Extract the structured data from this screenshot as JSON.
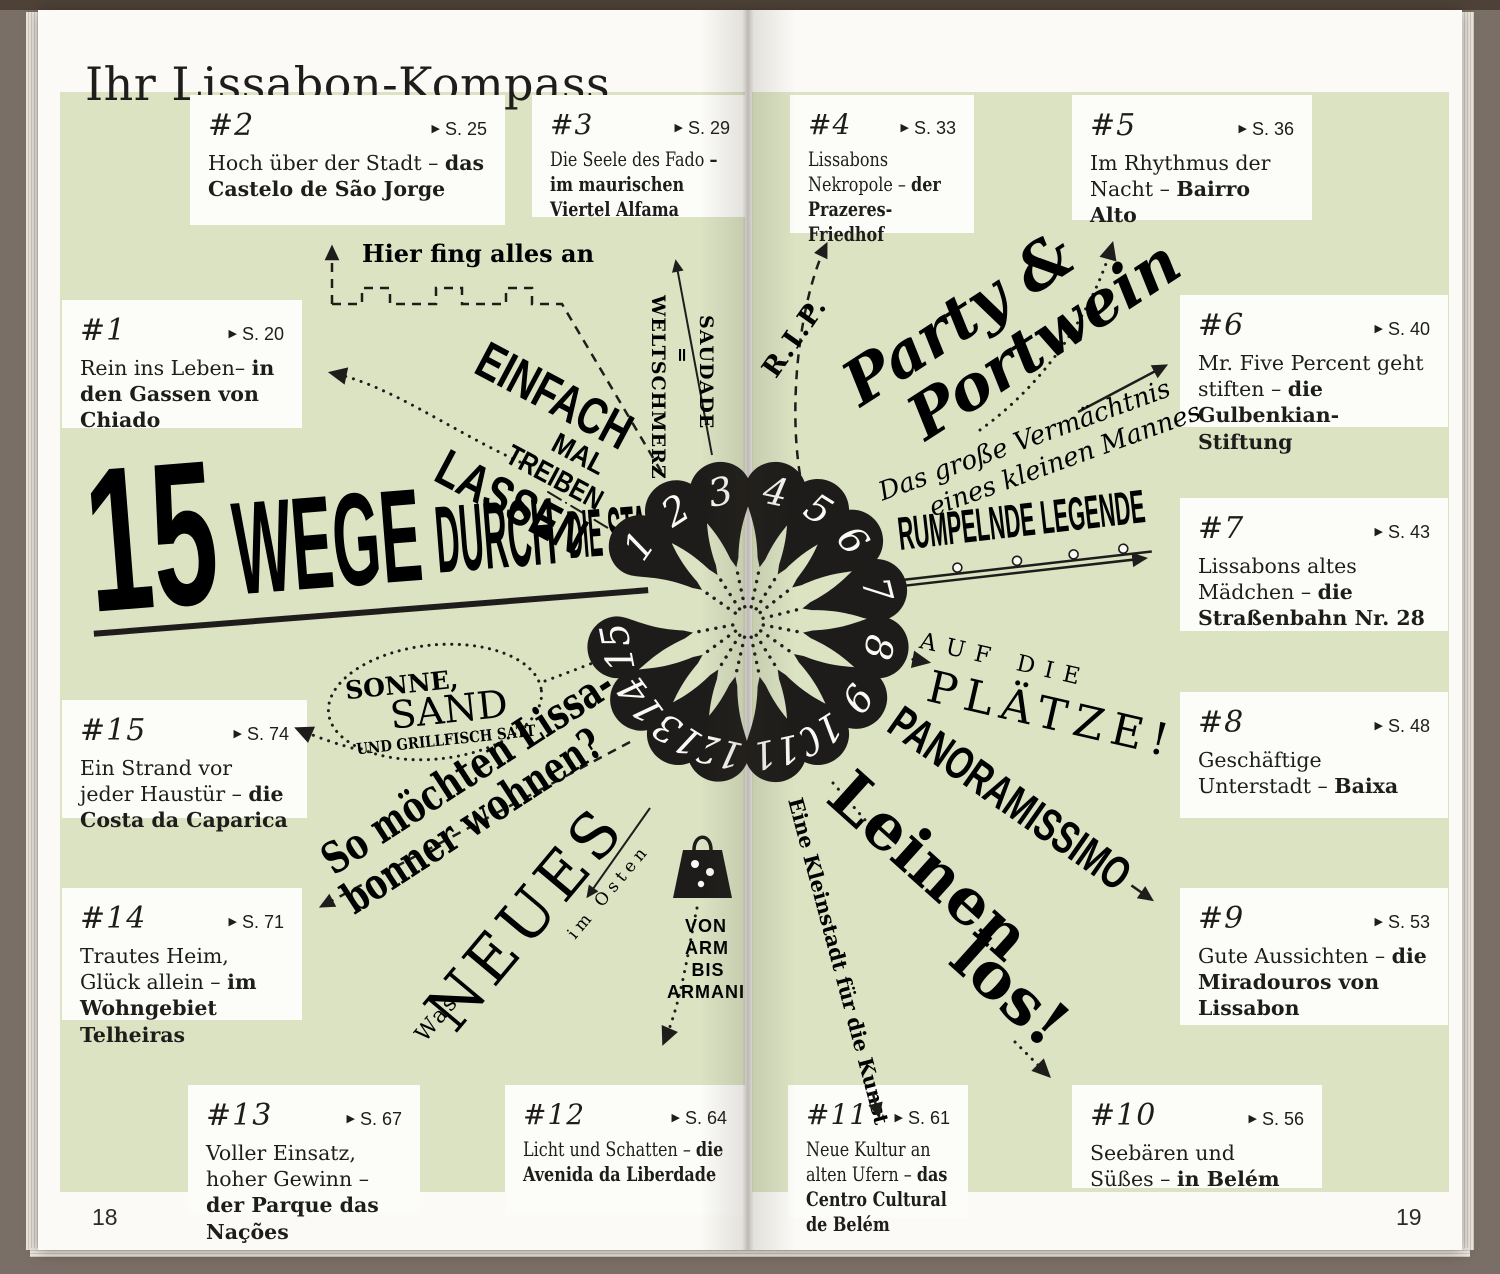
{
  "book": {
    "title": "Ihr Lissabon-Kompass",
    "page_number_left": "18",
    "page_number_right": "19"
  },
  "icons": {
    "page_arrow": "▶"
  },
  "colors": {
    "panel_green": "#dbe3c3",
    "ink": "#1e1d1b",
    "paper": "#fbfaf6",
    "cover": "#7a6f66"
  },
  "headline": {
    "number": "15",
    "word1": "WEGE",
    "word2": "DURCH",
    "word3": "DIE STADT"
  },
  "compass_labels": {
    "hier_fing_alles_an": "Hier fing alles an",
    "einfach_l1": "EINFACH",
    "einfach_l2": "MAL",
    "einfach_l3": "TREIBEN",
    "einfach_l4": "LASSEN",
    "saudade_l1": "SAUDADE",
    "saudade_l2": "=",
    "saudade_l3": "WELTSCHMERZ",
    "rip": "R.I.P.",
    "party_l1": "Party &",
    "party_l2": "Portwein",
    "vermaechtnis_l1": "Das große Vermächtnis",
    "vermaechtnis_l2": "eines kleinen Mannes",
    "rumpelnde_legende": "RUMPELNDE LEGENDE",
    "auf_die": "AUF DIE",
    "plaetze": "PLÄTZE!",
    "panoramissimo": "PANORAMISSIMO",
    "leinen_l1": "Leinen",
    "leinen_l2": "los!",
    "kleinstadt": "Eine Kleinstadt für die Kunst",
    "von_arm_l1": "VON",
    "von_arm_l2": "ARM",
    "von_arm_l3": "BIS",
    "von_arm_l4": "ARMANI",
    "was": "Was",
    "neues": "NEUES",
    "im_osten": "im Osten",
    "sonne_l1": "SONNE,",
    "sonne_l2": "SAND",
    "sonne_l3": "UND GRILLFISCH SATT",
    "wohnen_l1": "So möchten Lissa-",
    "wohnen_l2": "bonner wohnen?"
  },
  "pins": [
    {
      "label": "1",
      "angle": -55
    },
    {
      "label": "2",
      "angle": -33
    },
    {
      "label": "3",
      "angle": -12
    },
    {
      "label": "4",
      "angle": 12
    },
    {
      "label": "5",
      "angle": 32
    },
    {
      "label": "6",
      "angle": 52
    },
    {
      "label": "7",
      "angle": 76
    },
    {
      "label": "8",
      "angle": 101
    },
    {
      "label": "9",
      "angle": 125
    },
    {
      "label": "10",
      "angle": 148
    },
    {
      "label": "11",
      "angle": 168
    },
    {
      "label": "12",
      "angle": -167
    },
    {
      "label": "13",
      "angle": -148
    },
    {
      "label": "14",
      "angle": -126
    },
    {
      "label": "15",
      "angle": -101
    }
  ],
  "cards": [
    {
      "num": "#1",
      "ref": "S. 20",
      "plain": "Rein ins Leben– ",
      "bold": "in den Gassen von Chiado"
    },
    {
      "num": "#2",
      "ref": "S. 25",
      "plain": "Hoch über der Stadt – ",
      "bold": "das Castelo de São Jorge"
    },
    {
      "num": "#3",
      "ref": "S. 29",
      "plain": "Die Seele des Fado ",
      "bold": "– im maurischen Viertel Alfama"
    },
    {
      "num": "#4",
      "ref": "S. 33",
      "plain": "Lissabons Nekropole – ",
      "bold": "der Prazeres-Friedhof"
    },
    {
      "num": "#5",
      "ref": "S. 36",
      "plain": "Im Rhythmus der Nacht – ",
      "bold": "Bairro Alto"
    },
    {
      "num": "#6",
      "ref": "S. 40",
      "plain": "Mr. Five Percent geht stiften – ",
      "bold": "die Gulbenkian-Stiftung"
    },
    {
      "num": "#7",
      "ref": "S. 43",
      "plain": "Lissabons altes Mädchen – ",
      "bold": "die Straßenbahn Nr. 28"
    },
    {
      "num": "#8",
      "ref": "S. 48",
      "plain": "Geschäftige Unterstadt – ",
      "bold": "Baixa"
    },
    {
      "num": "#9",
      "ref": "S. 53",
      "plain": "Gute Aussichten – ",
      "bold": "die Miradouros von Lissabon"
    },
    {
      "num": "#10",
      "ref": "S. 56",
      "plain": "Seebären und Süßes – ",
      "bold": "in Belém"
    },
    {
      "num": "#11",
      "ref": "S. 61",
      "plain": "Neue Kultur an alten Ufern – ",
      "bold": "das Centro Cultural de Belém"
    },
    {
      "num": "#12",
      "ref": "S. 64",
      "plain": "Licht und Schatten – ",
      "bold": "die Avenida da Liberdade"
    },
    {
      "num": "#13",
      "ref": "S. 67",
      "plain": "Voller Einsatz, hoher Gewinn – ",
      "bold": "der Parque das Nações"
    },
    {
      "num": "#14",
      "ref": "S. 71",
      "plain": "Trautes Heim, Glück allein – ",
      "bold": "im Wohngebiet Telheiras"
    },
    {
      "num": "#15",
      "ref": "S. 74",
      "plain": "Ein Strand vor jeder Haustür – ",
      "bold": "die Costa da Caparica"
    }
  ]
}
